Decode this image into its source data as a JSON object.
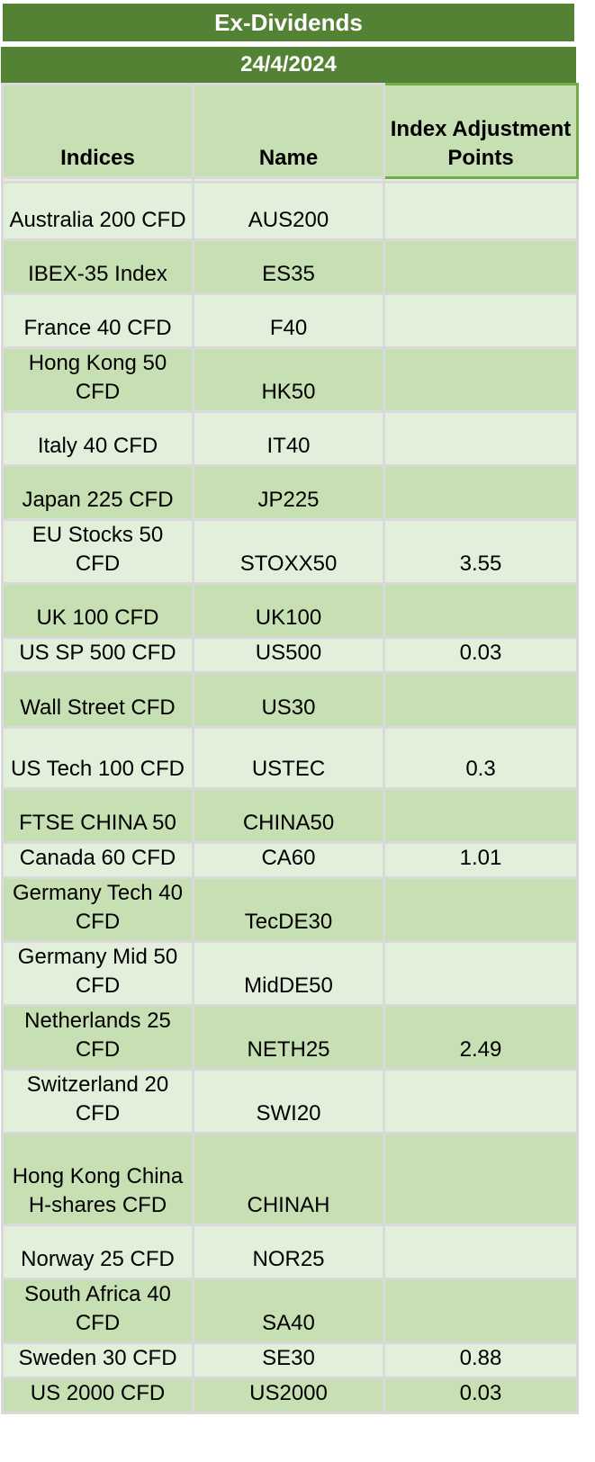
{
  "title": "Ex-Dividends",
  "date": "24/4/2024",
  "headers": {
    "indices": "Indices",
    "name": "Name",
    "adjustment": "Index Adjustment Points"
  },
  "rows": [
    {
      "index": "Australia 200 CFD",
      "name": "AUS200",
      "points": ""
    },
    {
      "index": "IBEX-35 Index",
      "name": "ES35",
      "points": ""
    },
    {
      "index": "France 40 CFD",
      "name": "F40",
      "points": ""
    },
    {
      "index": "Hong Kong 50 CFD",
      "name": "HK50",
      "points": ""
    },
    {
      "index": "Italy 40 CFD",
      "name": "IT40",
      "points": ""
    },
    {
      "index": "Japan 225 CFD",
      "name": "JP225",
      "points": ""
    },
    {
      "index": "EU Stocks 50 CFD",
      "name": "STOXX50",
      "points": "3.55"
    },
    {
      "index": "UK 100 CFD",
      "name": "UK100",
      "points": ""
    },
    {
      "index": "US SP 500 CFD",
      "name": "US500",
      "points": "0.03"
    },
    {
      "index": "Wall Street CFD",
      "name": "US30",
      "points": ""
    },
    {
      "index": "US Tech 100 CFD",
      "name": "USTEC",
      "points": "0.3"
    },
    {
      "index": "FTSE CHINA 50",
      "name": "CHINA50",
      "points": ""
    },
    {
      "index": "Canada 60 CFD",
      "name": "CA60",
      "points": "1.01"
    },
    {
      "index": "Germany Tech 40 CFD",
      "name": "TecDE30",
      "points": ""
    },
    {
      "index": "Germany Mid 50 CFD",
      "name": "MidDE50",
      "points": ""
    },
    {
      "index": "Netherlands 25 CFD",
      "name": "NETH25",
      "points": "2.49"
    },
    {
      "index": "Switzerland 20 CFD",
      "name": "SWI20",
      "points": ""
    },
    {
      "index": "Hong Kong China H-shares CFD",
      "name": "CHINAH",
      "points": ""
    },
    {
      "index": "Norway 25 CFD",
      "name": "NOR25",
      "points": ""
    },
    {
      "index": "South Africa 40 CFD",
      "name": "SA40",
      "points": ""
    },
    {
      "index": "Sweden 30 CFD",
      "name": "SE30",
      "points": "0.88"
    },
    {
      "index": "US 2000 CFD",
      "name": "US2000",
      "points": "0.03"
    }
  ]
}
